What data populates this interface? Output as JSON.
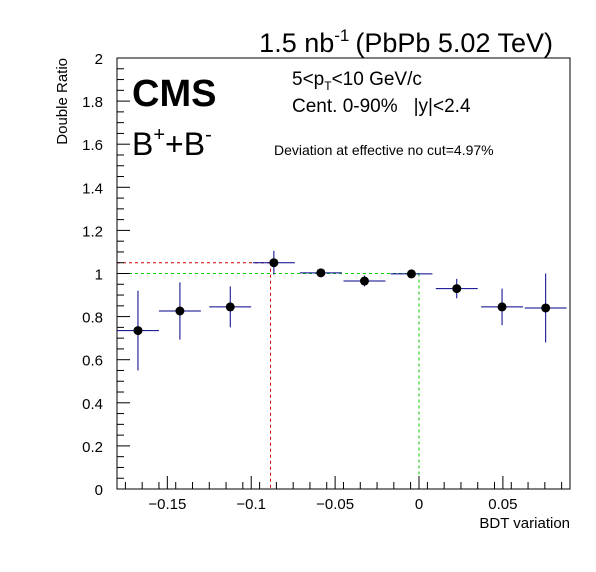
{
  "header": {
    "lumi": "1.5 nb",
    "lumi_sup": "-1",
    "system": "(PbPb 5.02 TeV)"
  },
  "labels": {
    "experiment": "CMS",
    "particle_b": "B",
    "particle_plus": "+",
    "particle_join": "+B",
    "particle_minus": "-",
    "pt_lo": "5<p",
    "pt_sub": "T",
    "pt_hi": "<10 GeV/c",
    "centrality": "Cent. 0-90%",
    "rapidity": "|y|<2.4",
    "deviation": "Deviation at effective no cut=4.97%"
  },
  "chart_data": {
    "type": "scatter",
    "xlabel": "BDT variation",
    "ylabel": "Double Ratio",
    "xlim": [
      -0.18,
      0.09
    ],
    "ylim": [
      0,
      2
    ],
    "x_ticks": [
      -0.15,
      -0.1,
      -0.05,
      0,
      0.05
    ],
    "x_tick_labels": [
      "−0.15",
      "−0.1",
      "−0.05",
      "0",
      "0.05"
    ],
    "y_ticks": [
      0,
      0.2,
      0.4,
      0.6,
      0.8,
      1,
      1.2,
      1.4,
      1.6,
      1.8,
      2
    ],
    "y_tick_labels": [
      "0",
      "0.2",
      "0.4",
      "0.6",
      "0.8",
      "1",
      "1.2",
      "1.4",
      "1.6",
      "1.8",
      "2"
    ],
    "series": [
      {
        "color": "#000000",
        "error_color": "#00008b",
        "points": [
          {
            "x": -0.1675,
            "y": 0.735,
            "xerr": 0.0125,
            "yerr": 0.185
          },
          {
            "x": -0.1425,
            "y": 0.826,
            "xerr": 0.0125,
            "yerr": 0.133
          },
          {
            "x": -0.1125,
            "y": 0.845,
            "xerr": 0.0125,
            "yerr": 0.095
          },
          {
            "x": -0.0865,
            "y": 1.05,
            "xerr": 0.0125,
            "yerr": 0.055
          },
          {
            "x": -0.0585,
            "y": 1.003,
            "xerr": 0.0125,
            "yerr": 0.015
          },
          {
            "x": -0.0325,
            "y": 0.965,
            "xerr": 0.0125,
            "yerr": 0.025
          },
          {
            "x": -0.0045,
            "y": 0.998,
            "xerr": 0.0125,
            "yerr": 0.01
          },
          {
            "x": 0.0225,
            "y": 0.93,
            "xerr": 0.0125,
            "yerr": 0.045
          },
          {
            "x": 0.0495,
            "y": 0.845,
            "xerr": 0.0125,
            "yerr": 0.085
          },
          {
            "x": 0.0755,
            "y": 0.84,
            "xerr": 0.0125,
            "yerr": 0.16
          }
        ]
      }
    ],
    "reference_lines": [
      {
        "color": "#cc0000",
        "style": "dashed",
        "y": 1.05,
        "x": -0.0885
      },
      {
        "color": "#00cc00",
        "style": "dashed",
        "y": 1.0,
        "x": 0.0
      }
    ]
  }
}
